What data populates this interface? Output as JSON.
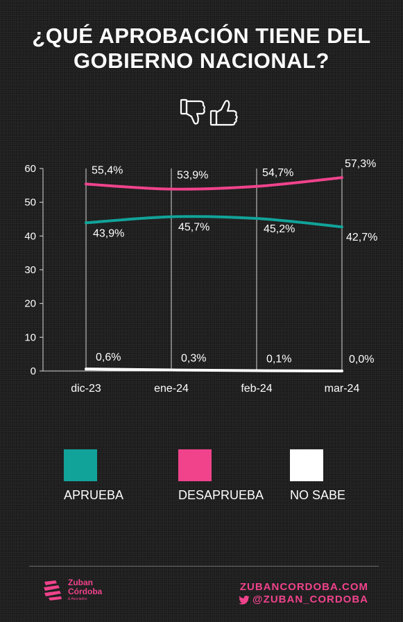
{
  "title": {
    "line1": "¿QUÉ APROBACIÓN TIENE DEL",
    "line2": "GOBIERNO NACIONAL?"
  },
  "colors": {
    "aprueba": "#11a39a",
    "desaprueba": "#f0438c",
    "no_sabe": "#ffffff",
    "brand": "#f0438c"
  },
  "chart_data": {
    "type": "line",
    "x": [
      "dic-23",
      "ene-24",
      "feb-24",
      "mar-24"
    ],
    "ylim": [
      0,
      60
    ],
    "yticks": [
      0,
      10,
      20,
      30,
      40,
      50,
      60
    ],
    "grid": "vertical",
    "series": [
      {
        "name": "APRUEBA",
        "color": "#11a39a",
        "values": [
          43.9,
          45.7,
          45.2,
          42.7
        ],
        "labels": [
          "43,9%",
          "45,7%",
          "45,2%",
          "42,7%"
        ]
      },
      {
        "name": "DESAPRUEBA",
        "color": "#f0438c",
        "values": [
          55.4,
          53.9,
          54.7,
          57.3
        ],
        "labels": [
          "55,4%",
          "53,9%",
          "54,7%",
          "57,3%"
        ]
      },
      {
        "name": "NO SABE",
        "color": "#ffffff",
        "values": [
          0.6,
          0.3,
          0.1,
          0.0
        ],
        "labels": [
          "0,6%",
          "0,3%",
          "0,1%",
          "0,0%"
        ]
      }
    ],
    "legend": "bottom"
  },
  "footer": {
    "logo_line1": "Zuban",
    "logo_line2": "Córdoba",
    "logo_sub": "& Asociados",
    "website": "ZUBANCORDOBA.COM",
    "twitter": "@ZUBAN_CORDOBA"
  }
}
